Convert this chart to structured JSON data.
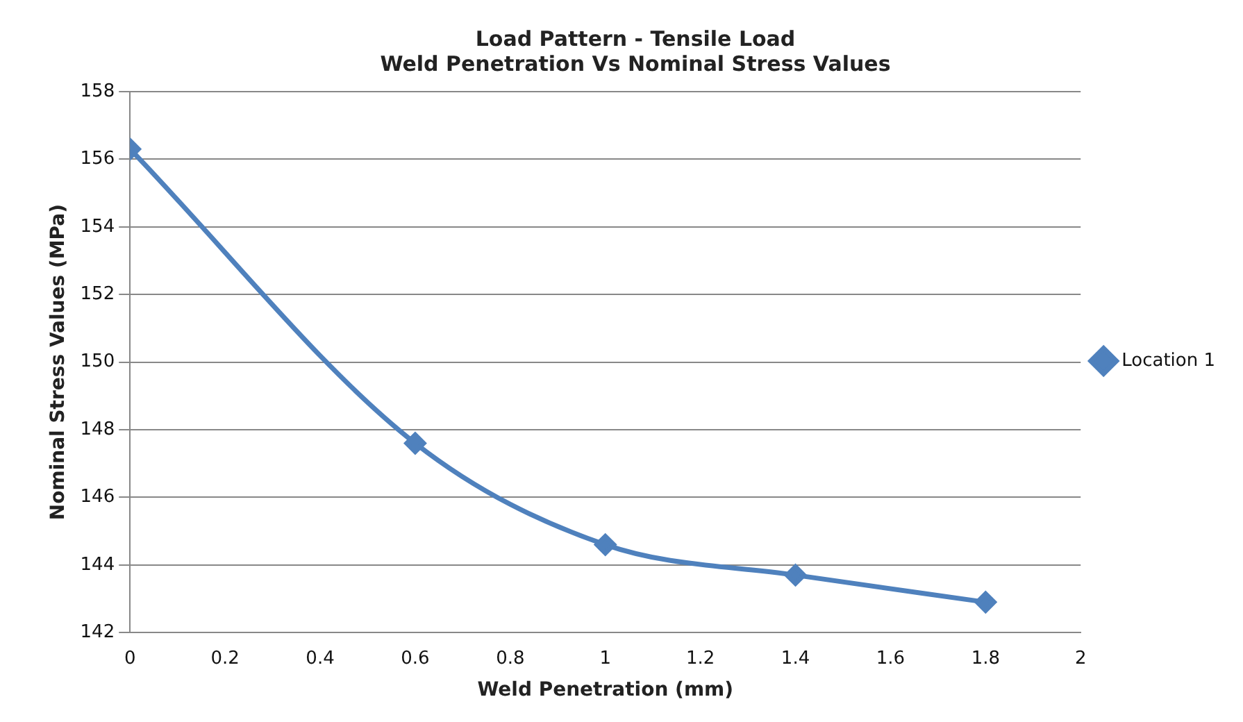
{
  "chart_data": {
    "type": "line",
    "title": [
      "Load Pattern - Tensile Load",
      "Weld Penetration Vs Nominal Stress Values"
    ],
    "xlabel": "Weld Penetration (mm)",
    "ylabel": "Nominal Stress Values (MPa)",
    "x": [
      0,
      0.6,
      1,
      1.4,
      1.8
    ],
    "series": [
      {
        "name": "Location 1",
        "color": "#4f81bd",
        "values": [
          156.3,
          147.6,
          144.6,
          143.7,
          142.9
        ]
      }
    ],
    "xlim": [
      0,
      2
    ],
    "xticks": [
      0,
      0.2,
      0.4,
      0.6,
      0.8,
      1,
      1.2,
      1.4,
      1.6,
      1.8,
      2
    ],
    "ylim": [
      142,
      158
    ],
    "yticks": [
      142,
      144,
      146,
      148,
      150,
      152,
      154,
      156,
      158
    ],
    "grid": "y",
    "legend": "right",
    "marker": "diamond",
    "line_style": "solid"
  }
}
